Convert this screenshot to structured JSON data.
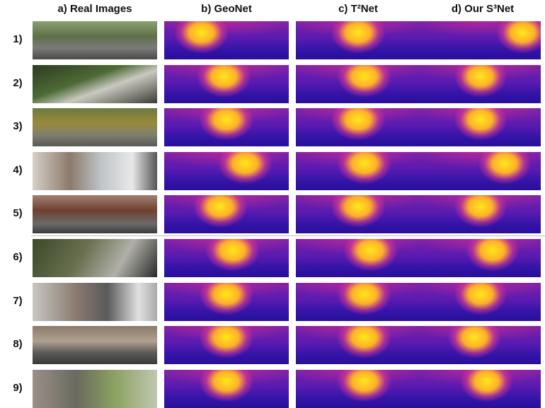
{
  "columns": [
    "a) Real Images",
    "b) GeoNet",
    "c) T²Net",
    "d) Our S³Net"
  ],
  "rows": [
    "1)",
    "2)",
    "3)",
    "4)",
    "5)",
    "6)",
    "7)",
    "8)",
    "9)"
  ]
}
